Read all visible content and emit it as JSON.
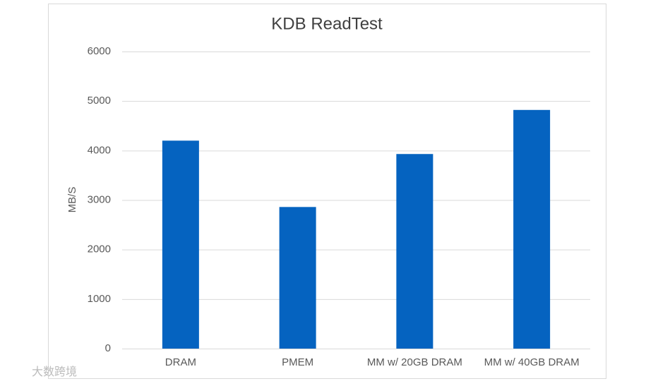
{
  "chart_data": {
    "type": "bar",
    "title": "KDB ReadTest",
    "y_label": "MB/S",
    "categories": [
      "DRAM",
      "PMEM",
      "MM w/ 20GB DRAM",
      "MM w/ 40GB DRAM"
    ],
    "values": [
      4200,
      2860,
      3930,
      4820
    ],
    "color": "#0563c0",
    "ylim": [
      0,
      6000
    ],
    "yticks": [
      0,
      1000,
      2000,
      3000,
      4000,
      5000,
      6000
    ],
    "grid": true
  },
  "watermark": "大数跨境"
}
